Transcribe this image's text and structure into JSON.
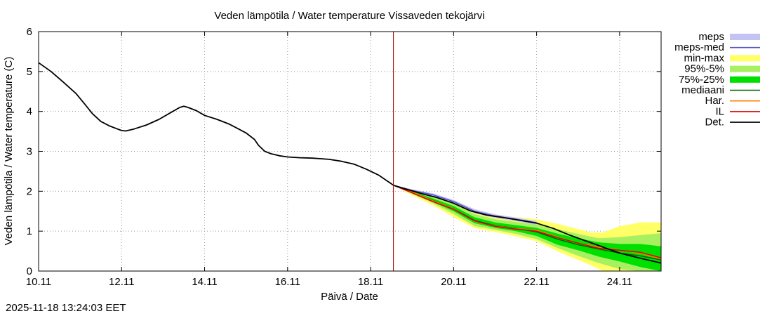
{
  "chart_data": {
    "type": "line",
    "title": "Veden lämpötila / Water temperature Vissaveden tekojärvi",
    "xlabel": "Päivä / Date",
    "ylabel": "Veden lämpötila / Water temperature (C)",
    "x_unit": "days since 10.11",
    "xlim": [
      0,
      15
    ],
    "ylim": [
      0,
      6
    ],
    "y_ticks": [
      "0",
      "1",
      "2",
      "3",
      "4",
      "5",
      "6"
    ],
    "x_ticks": [
      {
        "day": 0,
        "label": "10.11"
      },
      {
        "day": 2,
        "label": "12.11"
      },
      {
        "day": 4,
        "label": "14.11"
      },
      {
        "day": 6,
        "label": "16.11"
      },
      {
        "day": 8,
        "label": "18.11"
      },
      {
        "day": 10,
        "label": "20.11"
      },
      {
        "day": 12,
        "label": "22.11"
      },
      {
        "day": 14,
        "label": "24.11"
      }
    ],
    "grid": true,
    "forecast_start_day": 8.55,
    "legend_position": "right",
    "legend": [
      {
        "key": "meps",
        "label": "meps",
        "kind": "band",
        "color": "#c4c4f4"
      },
      {
        "key": "meps_med",
        "label": "meps-med",
        "kind": "line",
        "color": "#5050c8"
      },
      {
        "key": "minmax",
        "label": "min-max",
        "kind": "band",
        "color": "#ffff66"
      },
      {
        "key": "p95_5",
        "label": "95%-5%",
        "kind": "band",
        "color": "#a8f060"
      },
      {
        "key": "p75_25",
        "label": "75%-25%",
        "kind": "band",
        "color": "#00e000"
      },
      {
        "key": "mediaani",
        "label": "mediaani",
        "kind": "line",
        "color": "#006400"
      },
      {
        "key": "har",
        "label": "Har.",
        "kind": "line",
        "color": "#ff8000"
      },
      {
        "key": "il",
        "label": "IL",
        "kind": "line",
        "color": "#dd0000"
      },
      {
        "key": "det",
        "label": "Det.",
        "kind": "line",
        "color": "#000000"
      }
    ],
    "colors": {
      "forecast_line": "#aa0000",
      "grid": "#999999",
      "axis": "#000000"
    },
    "series": {
      "det": {
        "x": [
          0,
          0.3,
          0.6,
          0.9,
          1.1,
          1.3,
          1.5,
          1.7,
          1.9,
          2.0,
          2.1,
          2.3,
          2.6,
          2.9,
          3.2,
          3.4,
          3.5,
          3.6,
          3.8,
          4.0,
          4.3,
          4.6,
          4.8,
          5.0,
          5.2,
          5.3,
          5.45,
          5.6,
          5.8,
          6.0,
          6.3,
          6.6,
          7.0,
          7.3,
          7.6,
          7.9,
          8.2,
          8.55,
          8.8,
          9.2,
          9.6,
          10.0,
          10.4,
          10.8,
          11.2,
          11.6,
          12.0,
          12.4,
          12.8,
          13.2,
          13.6,
          14.0,
          14.5,
          15.0
        ],
        "y": [
          5.22,
          5.0,
          4.73,
          4.45,
          4.2,
          3.94,
          3.75,
          3.64,
          3.56,
          3.52,
          3.51,
          3.56,
          3.66,
          3.8,
          3.98,
          4.1,
          4.13,
          4.1,
          4.02,
          3.9,
          3.8,
          3.68,
          3.57,
          3.46,
          3.3,
          3.15,
          3.0,
          2.94,
          2.89,
          2.86,
          2.84,
          2.83,
          2.8,
          2.75,
          2.68,
          2.55,
          2.4,
          2.15,
          2.07,
          1.95,
          1.84,
          1.7,
          1.51,
          1.4,
          1.34,
          1.27,
          1.2,
          1.07,
          0.9,
          0.75,
          0.6,
          0.45,
          0.32,
          0.2
        ]
      },
      "meps_band": {
        "x": [
          8.55,
          9.0,
          9.5,
          10.0,
          10.5,
          11.0,
          11.5,
          12.0
        ],
        "upper": [
          2.15,
          2.05,
          1.95,
          1.78,
          1.55,
          1.42,
          1.34,
          1.25
        ],
        "lower": [
          2.15,
          2.0,
          1.87,
          1.7,
          1.45,
          1.33,
          1.25,
          1.16
        ]
      },
      "meps_med": {
        "x": [
          8.55,
          9.0,
          9.5,
          10.0,
          10.5,
          11.0,
          11.5,
          12.0
        ],
        "y": [
          2.15,
          2.02,
          1.91,
          1.74,
          1.5,
          1.38,
          1.3,
          1.21
        ]
      },
      "minmax_band": {
        "x": [
          8.55,
          9.0,
          9.5,
          10.0,
          10.5,
          11.0,
          11.5,
          12.0,
          12.5,
          13.0,
          13.3,
          13.6,
          14.0,
          14.5,
          15.0
        ],
        "upper": [
          2.15,
          2.05,
          1.93,
          1.78,
          1.55,
          1.4,
          1.35,
          1.3,
          1.18,
          1.05,
          0.97,
          0.97,
          1.12,
          1.22,
          1.22
        ],
        "lower": [
          2.15,
          1.9,
          1.65,
          1.35,
          1.08,
          0.98,
          0.87,
          0.75,
          0.5,
          0.28,
          0.15,
          0.0,
          0.0,
          0.0,
          0.0
        ]
      },
      "p95_5_band": {
        "x": [
          8.55,
          9.0,
          9.5,
          10.0,
          10.5,
          11.0,
          11.5,
          12.0,
          12.5,
          13.0,
          13.5,
          14.0,
          14.5,
          15.0
        ],
        "upper": [
          2.15,
          2.03,
          1.88,
          1.7,
          1.43,
          1.3,
          1.23,
          1.17,
          1.05,
          0.93,
          0.82,
          0.85,
          0.9,
          0.95
        ],
        "lower": [
          2.15,
          1.93,
          1.7,
          1.43,
          1.13,
          1.03,
          0.93,
          0.8,
          0.58,
          0.38,
          0.2,
          0.05,
          0.0,
          0.0
        ]
      },
      "p75_25_band": {
        "x": [
          8.55,
          9.0,
          9.5,
          10.0,
          10.5,
          11.0,
          11.5,
          12.0,
          12.5,
          13.0,
          13.5,
          14.0,
          14.5,
          15.0
        ],
        "upper": [
          2.15,
          2.0,
          1.82,
          1.63,
          1.35,
          1.22,
          1.15,
          1.08,
          0.94,
          0.82,
          0.72,
          0.68,
          0.68,
          0.62
        ],
        "lower": [
          2.15,
          1.95,
          1.73,
          1.5,
          1.2,
          1.08,
          1.0,
          0.88,
          0.66,
          0.52,
          0.36,
          0.24,
          0.1,
          0.0
        ]
      },
      "mediaani": {
        "x": [
          8.55,
          9.0,
          9.5,
          10.0,
          10.5,
          11.0,
          11.5,
          12.0,
          12.5,
          13.0,
          13.5,
          14.0,
          14.5,
          15.0
        ],
        "y": [
          2.15,
          1.97,
          1.77,
          1.56,
          1.27,
          1.14,
          1.07,
          0.98,
          0.8,
          0.66,
          0.55,
          0.45,
          0.38,
          0.28
        ]
      },
      "har": {
        "x": [
          8.55,
          9.0,
          9.5,
          10.0,
          10.5,
          11.0,
          11.5,
          12.0,
          12.5,
          13.0,
          13.5,
          14.0,
          14.5,
          15.0
        ],
        "y": [
          2.15,
          1.98,
          1.76,
          1.56,
          1.25,
          1.13,
          1.06,
          1.02,
          0.85,
          0.7,
          0.6,
          0.52,
          0.45,
          0.3
        ]
      },
      "il": {
        "x": [
          8.55,
          9.0,
          9.5,
          10.0,
          10.5,
          11.0,
          11.5,
          12.0,
          12.5,
          13.0,
          13.5,
          14.0,
          14.5,
          15.0
        ],
        "y": [
          2.15,
          1.96,
          1.74,
          1.55,
          1.26,
          1.12,
          1.05,
          1.0,
          0.84,
          0.7,
          0.57,
          0.52,
          0.47,
          0.33
        ]
      }
    }
  },
  "timestamp": "2025-11-18 13:24:03 EET"
}
